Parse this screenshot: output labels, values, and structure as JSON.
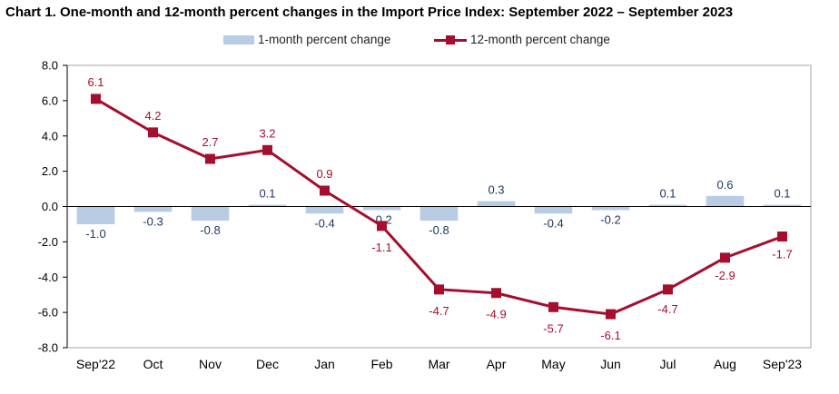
{
  "title": "Chart 1. One-month and 12-month percent changes in the Import Price Index: September 2022 – September 2023",
  "colors": {
    "bar": "#b8cce4",
    "line": "#a50f2d",
    "bar_label": "#1f3864",
    "line_label": "#a50f2d",
    "axis": "#000000",
    "frame": "#a6a6a6"
  },
  "legend": {
    "bar_label": "1-month percent change",
    "line_label": "12-month percent change"
  },
  "chart_data": {
    "type": "bar",
    "title": "Chart 1. One-month and 12-month percent changes in the Import Price Index: September 2022 – September 2023",
    "xlabel": "",
    "ylabel": "",
    "categories": [
      "Sep'22",
      "Oct",
      "Nov",
      "Dec",
      "Jan",
      "Feb",
      "Mar",
      "Apr",
      "May",
      "Jun",
      "Jul",
      "Aug",
      "Sep'23"
    ],
    "series": [
      {
        "name": "1-month percent change",
        "type": "bar",
        "values": [
          -1.0,
          -0.3,
          -0.8,
          0.1,
          -0.4,
          -0.2,
          -0.8,
          0.3,
          -0.4,
          -0.2,
          0.1,
          0.6,
          0.1
        ],
        "labels": [
          "-1.0",
          "-0.3",
          "-0.8",
          "0.1",
          "-0.4",
          "-0.2",
          "-0.8",
          "0.3",
          "-0.4",
          "-0.2",
          "0.1",
          "0.6",
          "0.1"
        ]
      },
      {
        "name": "12-month percent change",
        "type": "line",
        "values": [
          6.1,
          4.2,
          2.7,
          3.2,
          0.9,
          -1.1,
          -4.7,
          -4.9,
          -5.7,
          -6.1,
          -4.7,
          -2.9,
          -1.7
        ],
        "labels": [
          "6.1",
          "4.2",
          "2.7",
          "3.2",
          "0.9",
          "-1.1",
          "-4.7",
          "-4.9",
          "-5.7",
          "-6.1",
          "-4.7",
          "-2.9",
          "-1.7"
        ]
      }
    ],
    "ylim": [
      -8.0,
      8.0
    ],
    "yticks": [
      8.0,
      6.0,
      4.0,
      2.0,
      0.0,
      -2.0,
      -4.0,
      -6.0,
      -8.0
    ],
    "ytick_labels": [
      "8.0",
      "6.0",
      "4.0",
      "2.0",
      "0.0",
      "-2.0",
      "-4.0",
      "-6.0",
      "-8.0"
    ],
    "grid": false,
    "legend_position": "top-center"
  }
}
